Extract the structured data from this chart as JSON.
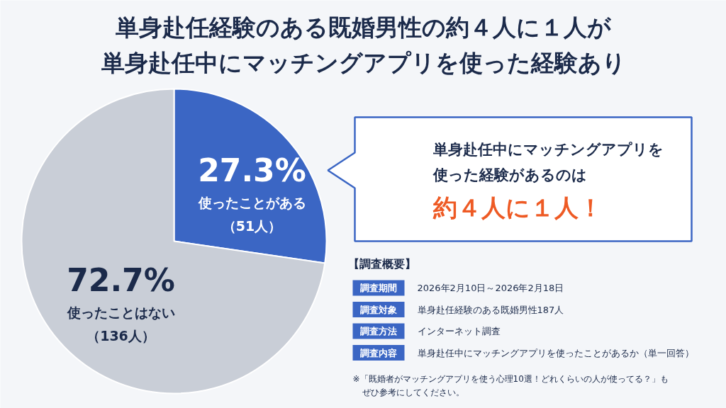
{
  "chart_data": {
    "type": "pie",
    "title": "単身赴任経験のある既婚男性の約４人に１人が",
    "subtitle": "単身赴任中にマッチングアプリを使った経験あり",
    "categories": [
      "使ったことがある",
      "使ったことはない"
    ],
    "values": [
      27.3,
      72.7
    ],
    "colors": [
      "#3b66c4",
      "#c9ced7"
    ],
    "value_labels": [
      "27.3%",
      "72.7%"
    ],
    "annotations": [
      "（51人）",
      "（136人）",
      "単身赴任中にマッチングアプリを",
      "使った経験があるのは",
      "約４人に１人！",
      "【調査概要】",
      "調査期間",
      "2026年2月10日～2026年2月18日",
      "調査対象",
      "単身赴任経験のある既婚男性187人",
      "調査方法",
      "インターネット調査",
      "調査内容",
      "単身赴任中にマッチングアプリを使ったことがあるか（単一回答）",
      "※「既婚者がマッチングアプリを使う心理10選！どれくらいの人が使ってる？」も",
      "ぜひ参考にしてください。"
    ]
  }
}
